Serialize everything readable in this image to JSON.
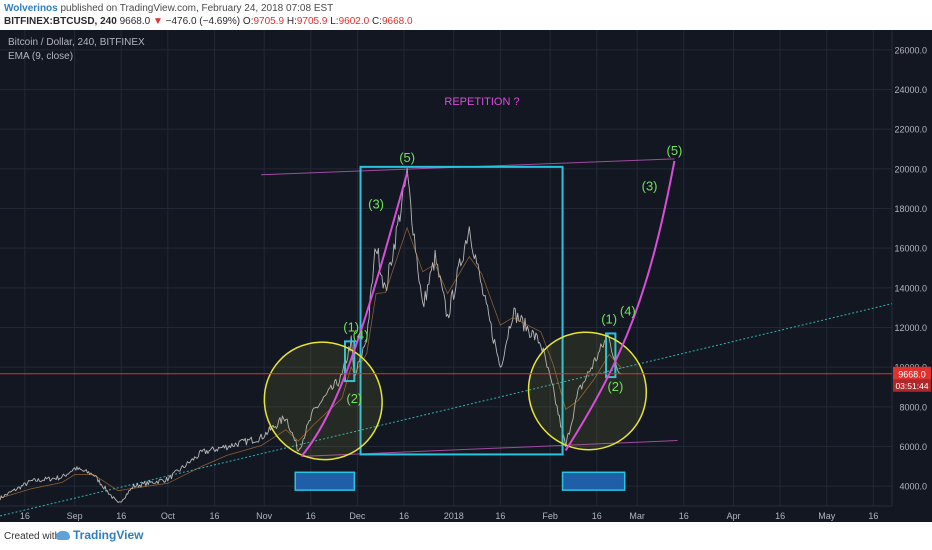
{
  "header": {
    "author": "Wolverinos",
    "published_text": "published on TradingView.com, February 24, 2018 07:08 EST",
    "symbol": "BITFINEX:BTCUSD, 240",
    "last": "9668.0",
    "change_arrow": "▼",
    "change": "−476.0 (−4.69%)",
    "ohlc": [
      {
        "label": "O:",
        "value": "9705.9"
      },
      {
        "label": "H:",
        "value": "9705.9"
      },
      {
        "label": "L:",
        "value": "9602.0"
      },
      {
        "label": "C:",
        "value": "9668.0"
      }
    ]
  },
  "legend": {
    "title": "Bitcoin / Dollar, 240, BITFINEX",
    "indicator": "EMA (9, close)"
  },
  "footer": {
    "created_with": "Created with",
    "brand": "TradingView"
  },
  "colors": {
    "background": "#131722",
    "grid": "#232837",
    "price_line": "#e0312d",
    "price_tag": "#e0312d",
    "magenta": "#d94dd9",
    "annotation_green": "#6ee25a",
    "cyan_box": "#29c4e0",
    "yellow_ellipse": "#e6e635",
    "trend_dotted": "#2fb0b0",
    "blue_rect_fill": "#1f5fa8"
  },
  "chart_data": {
    "type": "line",
    "title": "Bitcoin / Dollar, 240, BITFINEX",
    "indicator": "EMA (9, close)",
    "symbol": "BITFINEX:BTCUSD",
    "ylim": [
      3000,
      27000
    ],
    "y_ticks": [
      "4000.0",
      "6000.0",
      "8000.0",
      "10000.0",
      "12000.0",
      "14000.0",
      "16000.0",
      "18000.0",
      "20000.0",
      "22000.0",
      "24000.0",
      "26000.0"
    ],
    "x_tick_labels": [
      "16",
      "Sep",
      "16",
      "Oct",
      "16",
      "Nov",
      "16",
      "Dec",
      "16",
      "2018",
      "16",
      "Feb",
      "16",
      "Mar",
      "16",
      "Apr",
      "16",
      "May",
      "16"
    ],
    "last_price": {
      "value": 9668.0,
      "label": "9668.0",
      "countdown": "03:51:44"
    },
    "series": [
      {
        "values": [
          {
            "date": "2017-08-08",
            "price": 3400
          },
          {
            "date": "2017-08-18",
            "price": 4250
          },
          {
            "date": "2017-08-28",
            "price": 4450
          },
          {
            "date": "2017-09-01",
            "price": 4900
          },
          {
            "date": "2017-09-07",
            "price": 4600
          },
          {
            "date": "2017-09-15",
            "price": 3100
          },
          {
            "date": "2017-09-20",
            "price": 4000
          },
          {
            "date": "2017-10-01",
            "price": 4350
          },
          {
            "date": "2017-10-12",
            "price": 5700
          },
          {
            "date": "2017-10-20",
            "price": 6000
          },
          {
            "date": "2017-10-31",
            "price": 6450
          },
          {
            "date": "2017-11-08",
            "price": 7500
          },
          {
            "date": "2017-11-12",
            "price": 5800
          },
          {
            "date": "2017-11-17",
            "price": 7800
          },
          {
            "date": "2017-11-26",
            "price": 9500
          },
          {
            "date": "2017-11-29",
            "price": 11300
          },
          {
            "date": "2017-11-30",
            "price": 9400
          },
          {
            "date": "2017-12-04",
            "price": 11500
          },
          {
            "date": "2017-12-07",
            "price": 16200
          },
          {
            "date": "2017-12-10",
            "price": 13800
          },
          {
            "date": "2017-12-17",
            "price": 19700
          },
          {
            "date": "2017-12-22",
            "price": 13000
          },
          {
            "date": "2017-12-26",
            "price": 15500
          },
          {
            "date": "2017-12-30",
            "price": 12500
          },
          {
            "date": "2018-01-06",
            "price": 17100
          },
          {
            "date": "2018-01-10",
            "price": 14000
          },
          {
            "date": "2018-01-16",
            "price": 10000
          },
          {
            "date": "2018-01-20",
            "price": 12800
          },
          {
            "date": "2018-01-29",
            "price": 11200
          },
          {
            "date": "2018-02-02",
            "price": 8800
          },
          {
            "date": "2018-02-06",
            "price": 6000
          },
          {
            "date": "2018-02-10",
            "price": 8700
          },
          {
            "date": "2018-02-15",
            "price": 10200
          },
          {
            "date": "2018-02-20",
            "price": 11700
          },
          {
            "date": "2018-02-22",
            "price": 10000
          },
          {
            "date": "2018-02-24",
            "price": 9668
          }
        ]
      }
    ],
    "annotations": {
      "title_text": "REPETITION ?",
      "wave_labels": [
        {
          "text": "(5)",
          "date": "2017-12-17",
          "price": 20350
        },
        {
          "text": "(3)",
          "date": "2017-12-07",
          "price": 18000
        },
        {
          "text": "(1)",
          "date": "2017-11-29",
          "price": 11800
        },
        {
          "text": "(4)",
          "date": "2017-12-02",
          "price": 11400
        },
        {
          "text": "(2)",
          "date": "2017-11-30",
          "price": 8200
        },
        {
          "text": "(1)",
          "date": "2018-02-20",
          "price": 12200
        },
        {
          "text": "(4)",
          "date": "2018-02-26",
          "price": 12600
        },
        {
          "text": "(2)",
          "date": "2018-02-22",
          "price": 8800
        },
        {
          "text": "(3)",
          "date": "2018-03-05",
          "price": 18900
        },
        {
          "text": "(5)",
          "date": "2018-03-13",
          "price": 20700
        }
      ],
      "big_box": {
        "date_from": "2017-12-02",
        "date_to": "2018-02-05",
        "price_from": 5600,
        "price_to": 20100
      },
      "small_boxes": [
        {
          "date_from": "2017-11-27",
          "date_to": "2017-11-30",
          "price_from": 9300,
          "price_to": 11300
        },
        {
          "date_from": "2018-02-19",
          "date_to": "2018-02-22",
          "price_from": 9500,
          "price_to": 11700
        }
      ],
      "blue_rects": [
        {
          "date_from": "2017-11-11",
          "date_to": "2017-11-30",
          "price_from": 3800,
          "price_to": 4700
        },
        {
          "date_from": "2018-02-05",
          "date_to": "2018-02-25",
          "price_from": 3800,
          "price_to": 4700
        }
      ],
      "trend_line_dotted": [
        {
          "date": "2017-08-08",
          "price": 2500
        },
        {
          "date": "2018-05-22",
          "price": 13200
        }
      ],
      "upper_line": [
        {
          "date": "2017-10-31",
          "price": 19700
        },
        {
          "date": "2018-03-13",
          "price": 20500
        }
      ],
      "lower_line": [
        {
          "date": "2017-11-13",
          "price": 5500
        },
        {
          "date": "2018-03-14",
          "price": 6300
        }
      ],
      "curves": [
        {
          "points": [
            {
              "date": "2017-11-13",
              "price": 5500
            },
            {
              "date": "2017-11-26",
              "price": 8000
            },
            {
              "date": "2017-12-04",
              "price": 12500
            },
            {
              "date": "2017-12-17",
              "price": 19800
            }
          ]
        },
        {
          "points": [
            {
              "date": "2018-02-06",
              "price": 5800
            },
            {
              "date": "2018-02-25",
              "price": 10500
            },
            {
              "date": "2018-03-05",
              "price": 13800
            },
            {
              "date": "2018-03-13",
              "price": 20400
            }
          ]
        }
      ],
      "ellipses": [
        {
          "date_center": "2017-11-20",
          "price_center": 8300,
          "date_span_days": 11,
          "price_span": 3000,
          "rotation": -48
        },
        {
          "date_center": "2018-02-13",
          "price_center": 8800,
          "date_span_days": 11,
          "price_span": 3000,
          "rotation": -48
        }
      ]
    }
  }
}
